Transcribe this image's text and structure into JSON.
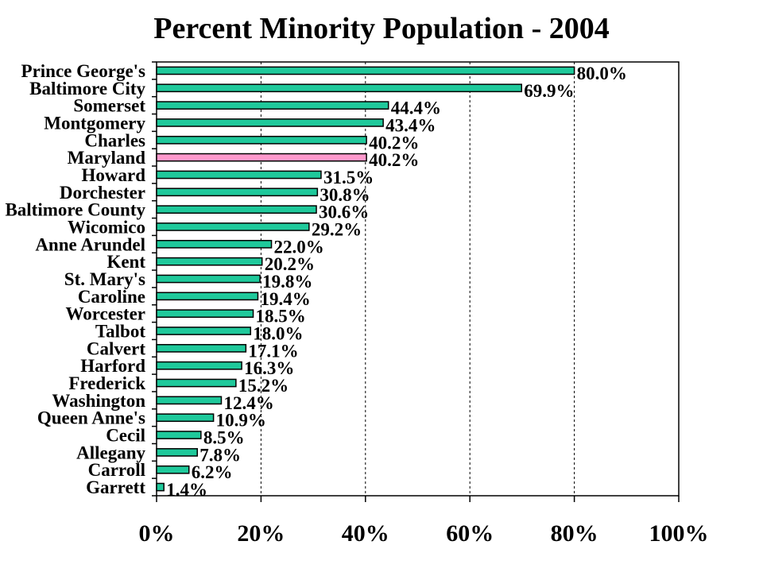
{
  "chart_data": {
    "type": "bar",
    "orientation": "horizontal",
    "title": "Percent Minority Population - 2004",
    "xlabel": "",
    "ylabel": "",
    "xlim": [
      0,
      100
    ],
    "x_ticks": [
      "0%",
      "20%",
      "40%",
      "60%",
      "80%",
      "100%"
    ],
    "grid": "vertical dotted lines at 20%, 40%, 60%, 80%",
    "categories": [
      "Prince George's",
      "Baltimore City",
      "Somerset",
      "Montgomery",
      "Charles",
      "Maryland",
      "Howard",
      "Dorchester",
      "Baltimore County",
      "Wicomico",
      "Anne Arundel",
      "Kent",
      "St. Mary's",
      "Caroline",
      "Worcester",
      "Talbot",
      "Calvert",
      "Harford",
      "Frederick",
      "Washington",
      "Queen Anne's",
      "Cecil",
      "Allegany",
      "Carroll",
      "Garrett"
    ],
    "values": [
      80.0,
      69.9,
      44.4,
      43.4,
      40.2,
      40.2,
      31.5,
      30.8,
      30.6,
      29.2,
      22.0,
      20.2,
      19.8,
      19.4,
      18.5,
      18.0,
      17.1,
      16.3,
      15.2,
      12.4,
      10.9,
      8.5,
      7.8,
      6.2,
      1.4
    ],
    "value_labels": [
      "80.0%",
      "69.9%",
      "44.4%",
      "43.4%",
      "40.2%",
      "40.2%",
      "31.5%",
      "30.8%",
      "30.6%",
      "29.2%",
      "22.0%",
      "20.2%",
      "19.8%",
      "19.4%",
      "18.5%",
      "18.0%",
      "17.1%",
      "16.3%",
      "15.2%",
      "12.4%",
      "10.9%",
      "8.5%",
      "7.8%",
      "6.2%",
      "1.4%"
    ],
    "bar_color": "#1fc99b",
    "highlight_category": "Maryland",
    "highlight_color": "#ff99cc"
  }
}
